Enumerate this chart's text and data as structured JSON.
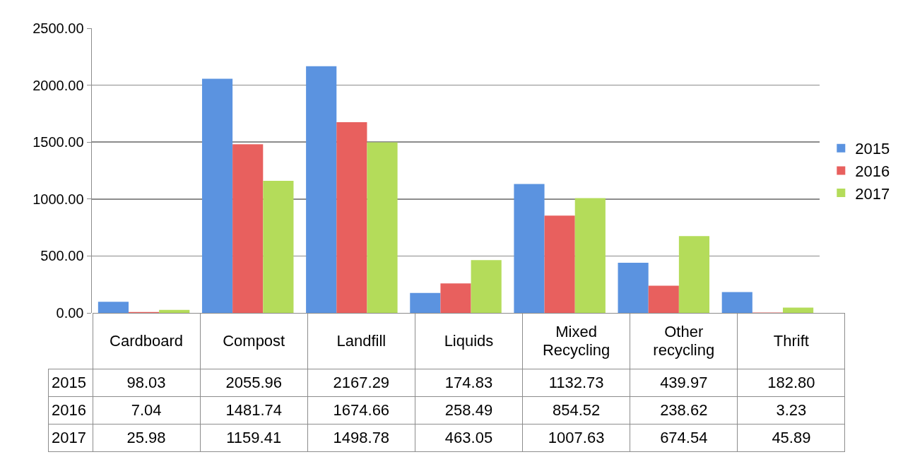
{
  "chart_data": {
    "type": "bar",
    "categories": [
      "Cardboard",
      "Compost",
      "Landfill",
      "Liquids",
      "Mixed Recycling",
      "Other recycling",
      "Thrift"
    ],
    "series": [
      {
        "name": "2015",
        "color": "#5b93e0",
        "values": [
          98.03,
          2055.96,
          2167.29,
          174.83,
          1132.73,
          439.97,
          182.8
        ],
        "value_labels": [
          "98.03",
          "2055.96",
          "2167.29",
          "174.83",
          "1132.73",
          "439.97",
          "182.80"
        ]
      },
      {
        "name": "2016",
        "color": "#e8605e",
        "values": [
          7.04,
          1481.74,
          1674.66,
          258.49,
          854.52,
          238.62,
          3.23
        ],
        "value_labels": [
          "7.04",
          "1481.74",
          "1674.66",
          "258.49",
          "854.52",
          "238.62",
          "3.23"
        ]
      },
      {
        "name": "2017",
        "color": "#b4dc5a",
        "values": [
          25.98,
          1159.41,
          1498.78,
          463.05,
          1007.63,
          674.54,
          45.89
        ],
        "value_labels": [
          "25.98",
          "1159.41",
          "1498.78",
          "463.05",
          "1007.63",
          "674.54",
          "45.89"
        ]
      }
    ],
    "ylim": [
      0,
      2500
    ],
    "yticks": [
      {
        "value": 0,
        "label": "0.00"
      },
      {
        "value": 500,
        "label": "500.00"
      },
      {
        "value": 1000,
        "label": "1000.00"
      },
      {
        "value": 1500,
        "label": "1500.00"
      },
      {
        "value": 2000,
        "label": "2000.00"
      },
      {
        "value": 2500,
        "label": "2500.00"
      }
    ],
    "grid": "y",
    "legend": "right"
  }
}
